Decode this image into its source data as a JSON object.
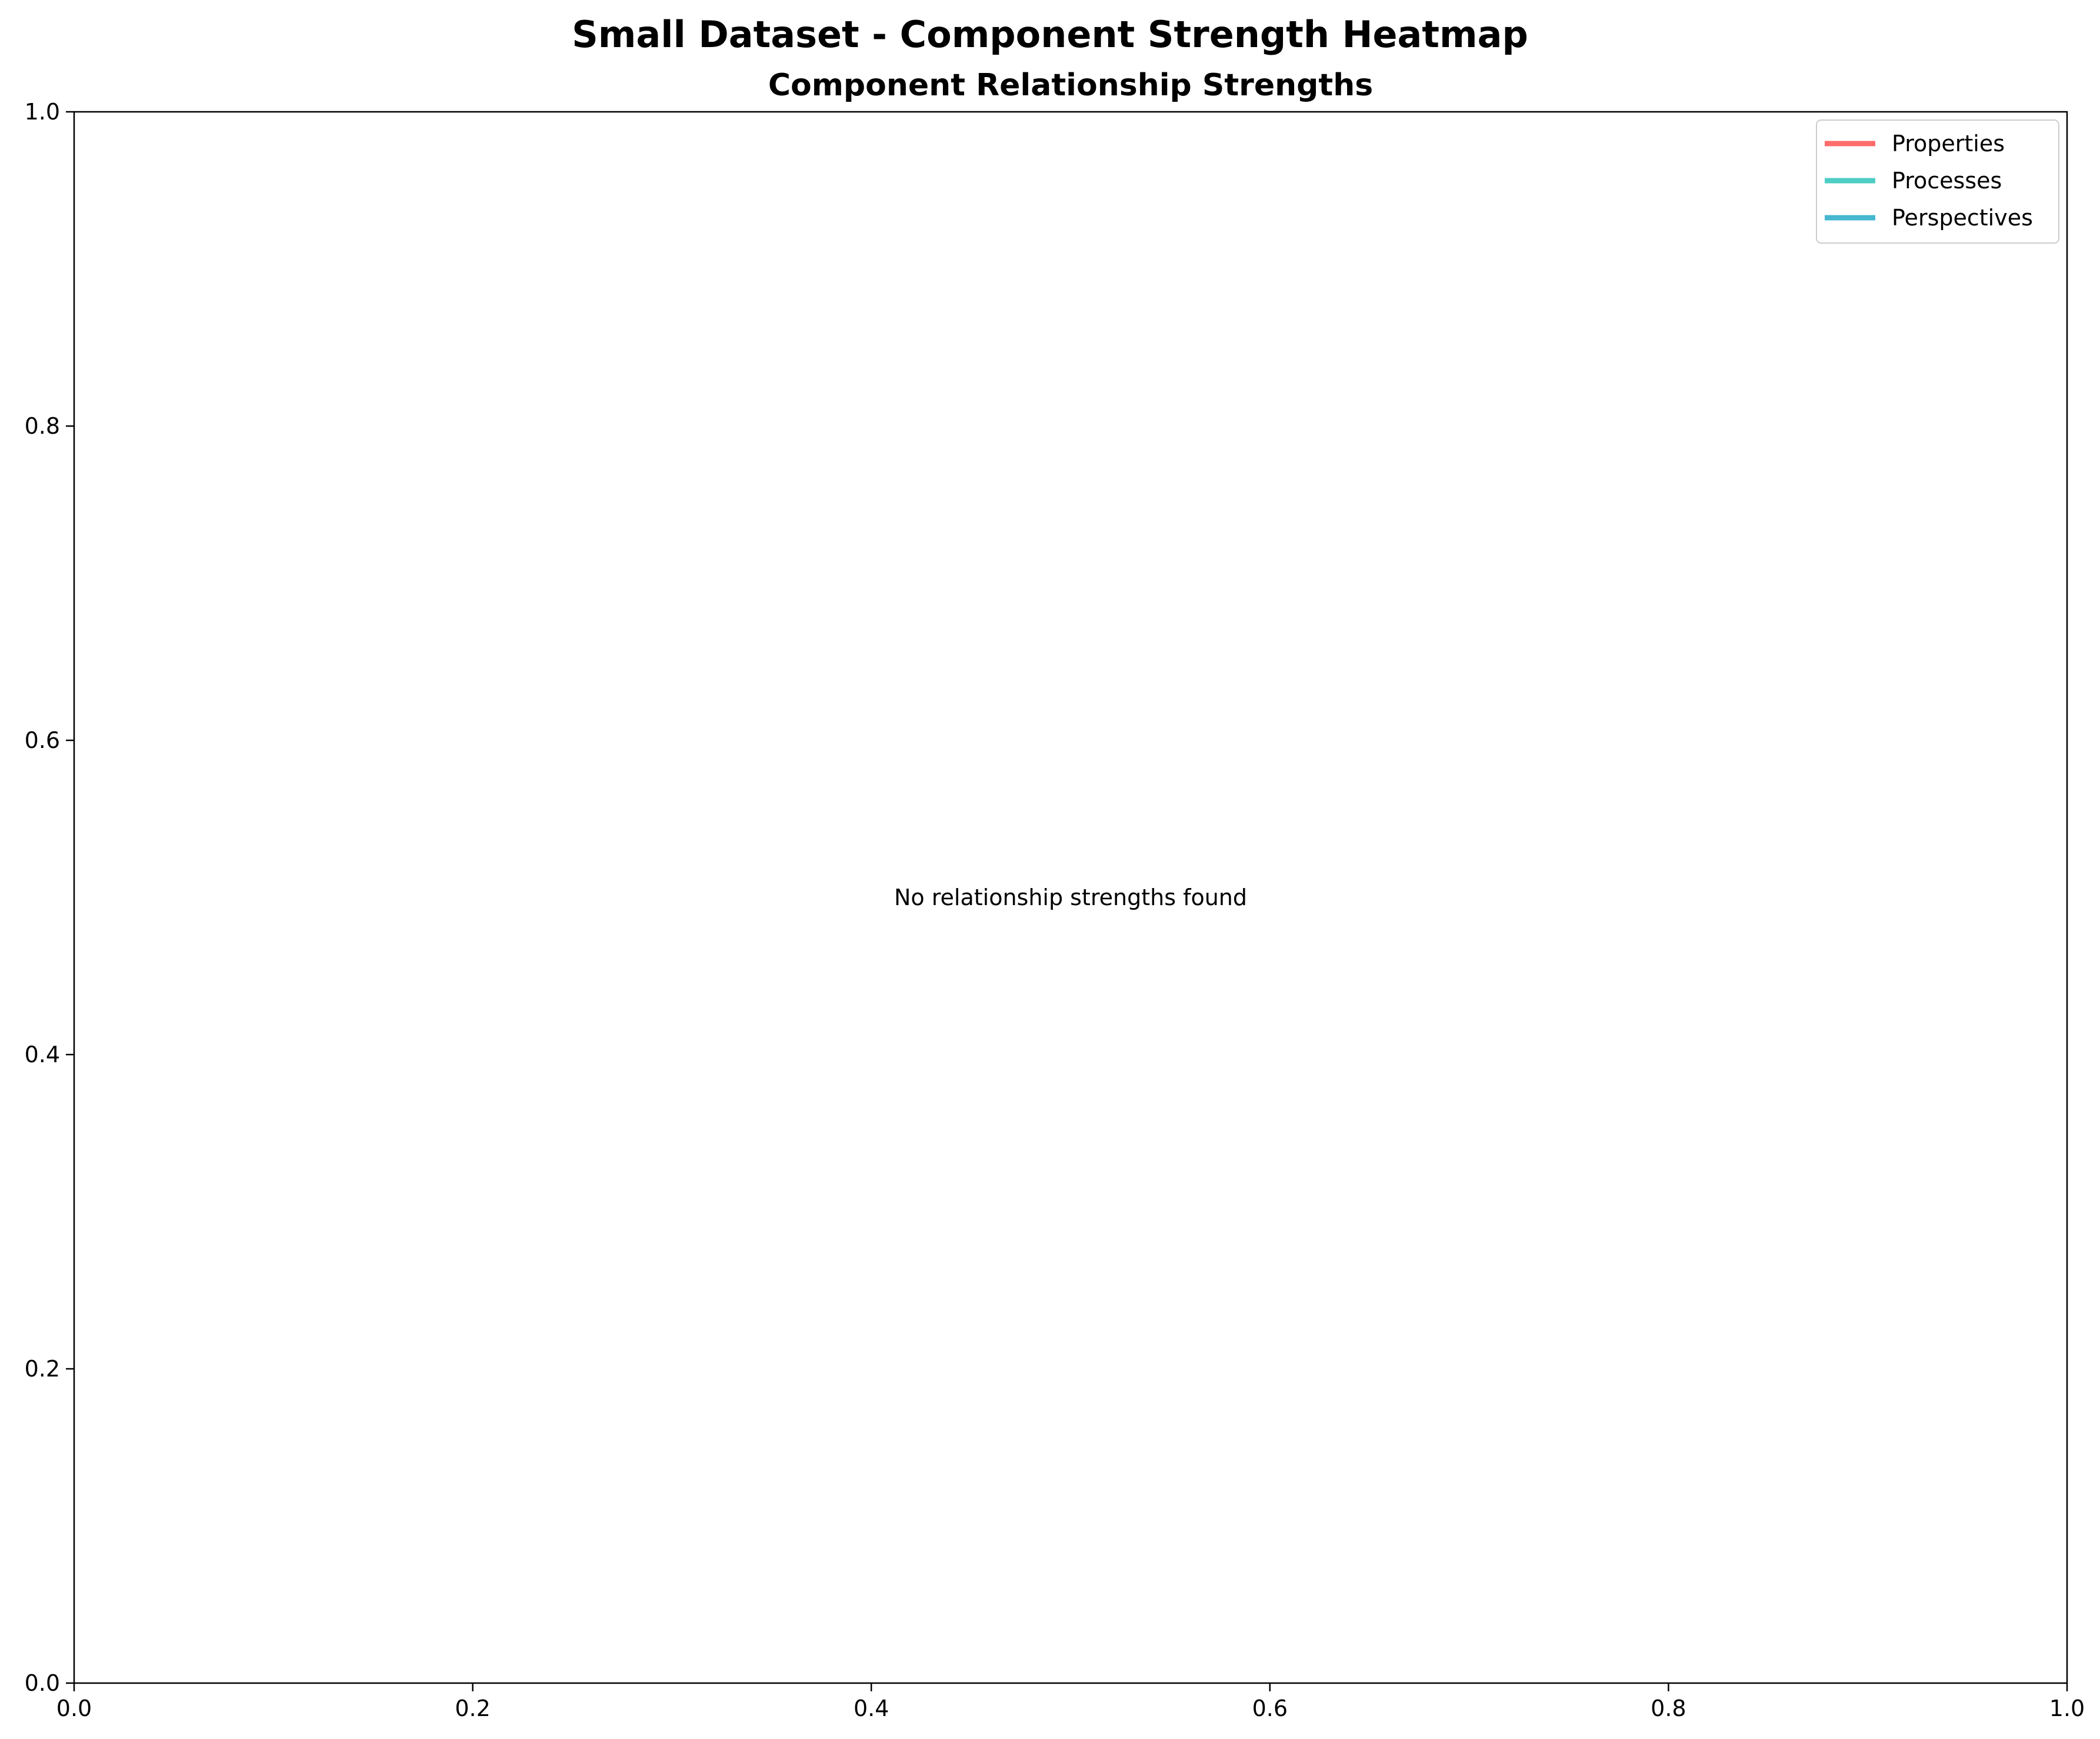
{
  "chart_data": {
    "type": "heatmap",
    "title": "Small Dataset - Component Strength Heatmap",
    "subtitle": "Component Relationship Strengths",
    "xlabel": "",
    "ylabel": "",
    "xlim": [
      0.0,
      1.0
    ],
    "ylim": [
      0.0,
      1.0
    ],
    "x_ticks": [
      "0.0",
      "0.2",
      "0.4",
      "0.6",
      "0.8",
      "1.0"
    ],
    "y_ticks": [
      "0.0",
      "0.2",
      "0.4",
      "0.6",
      "0.8",
      "1.0"
    ],
    "grid": false,
    "legend_position": "top-right",
    "series": [
      {
        "name": "Properties",
        "color": "#ff6b6b",
        "values": []
      },
      {
        "name": "Processes",
        "color": "#4ecdc4",
        "values": []
      },
      {
        "name": "Perspectives",
        "color": "#45b7d1",
        "values": []
      }
    ],
    "annotation": {
      "text": "No relationship strengths found",
      "x": 0.5,
      "y": 0.5
    }
  }
}
